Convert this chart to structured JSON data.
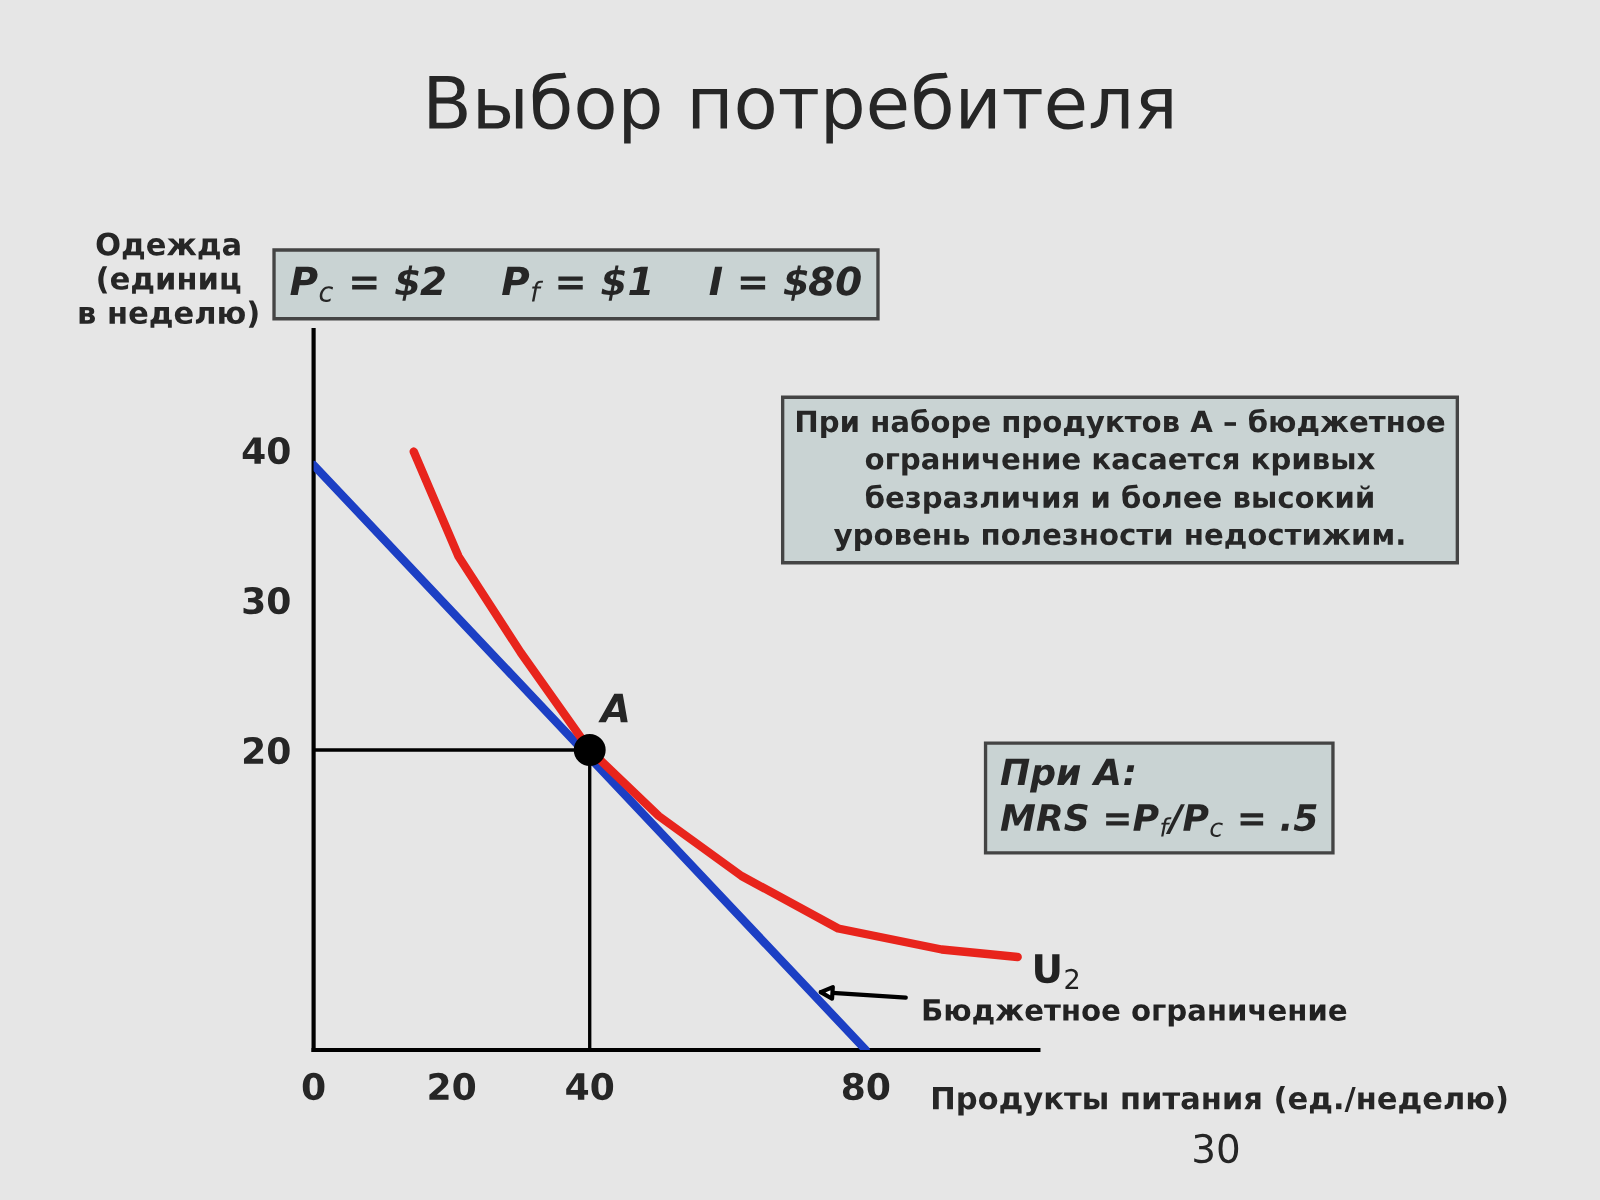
{
  "chart_data": {
    "type": "line",
    "title": "Выбор потребителя",
    "xlabel": "Продукты питания (ед./неделю)",
    "ylabel": "Одежда\n(единиц\nв неделю)",
    "xlim": [
      0,
      105
    ],
    "ylim": [
      0,
      48
    ],
    "xticks": [
      0,
      20,
      40,
      80
    ],
    "yticks": [
      20,
      30,
      40
    ],
    "series": [
      {
        "name": "Бюджетное ограничение",
        "color": "#1c3fc4",
        "x": [
          0,
          80
        ],
        "values": [
          39,
          0
        ]
      },
      {
        "name": "U$_{2}$",
        "color": "#e8241c",
        "x": [
          14.5,
          21,
          30,
          40,
          50,
          62,
          76,
          91,
          102
        ],
        "values": [
          39.9,
          32.9,
          26.5,
          20,
          15.6,
          11.6,
          8.1,
          6.7,
          6.2
        ]
      },
      {
        "color": "#000000",
        "x": [
          0,
          40,
          40
        ],
        "values": [
          20,
          20,
          0
        ]
      },
      {
        "type": "scatter",
        "color": "#000000",
        "x": [
          40
        ],
        "values": [
          20
        ]
      }
    ],
    "annotations": [
      {
        "text": "A",
        "x": 40,
        "y": 20
      },
      "P$_{c}$ = $2    P$_{f}$ = $1    I = $80",
      "При наборе продуктов A – бюджетное\nограничение касается кривых\nбезразличия и более высокий\nуровень полезности недостижим.",
      "При A:\nMRS =P$_{f}$/P$_{c}$ = .5",
      "30"
    ],
    "legend": false,
    "grid": false
  }
}
